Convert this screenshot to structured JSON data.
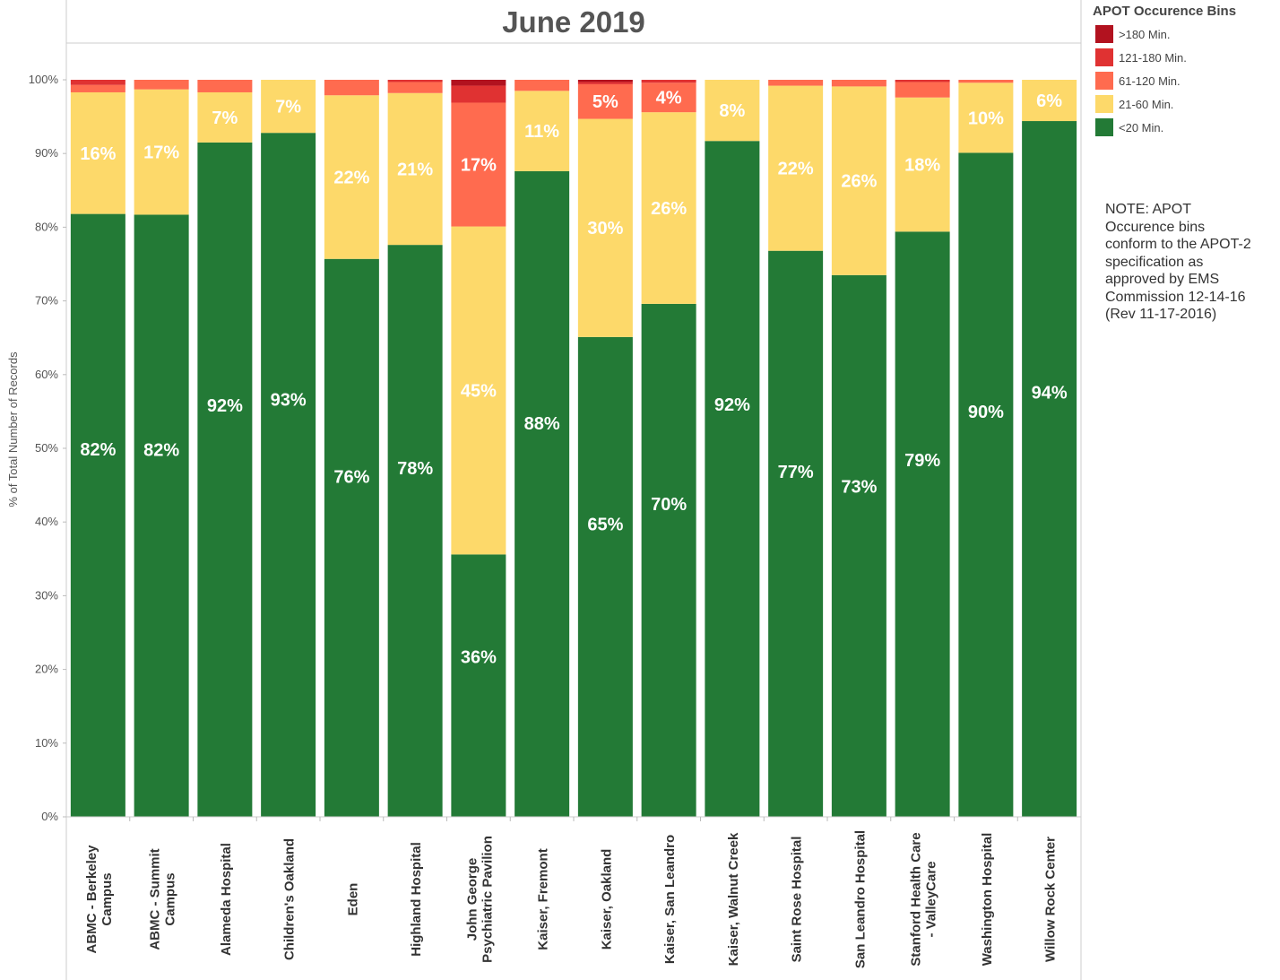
{
  "chart_data": {
    "type": "bar",
    "stacked": true,
    "title": "June 2019",
    "ylabel": "% of Total Number of Records",
    "xlabel": "",
    "ylim": [
      0,
      100
    ],
    "yticks": [
      "0%",
      "10%",
      "20%",
      "30%",
      "40%",
      "50%",
      "60%",
      "70%",
      "80%",
      "90%",
      "100%"
    ],
    "grid": false,
    "legend_position": "right",
    "categories": [
      [
        "ABMC - Berkeley",
        "Campus"
      ],
      [
        "ABMC - Summit",
        "Campus"
      ],
      [
        "Alameda Hospital"
      ],
      [
        "Children's Oakland"
      ],
      [
        "Eden"
      ],
      [
        "Highland Hospital"
      ],
      [
        "John George",
        "Psychiatric Pavilion"
      ],
      [
        "Kaiser, Fremont"
      ],
      [
        "Kaiser, Oakland"
      ],
      [
        "Kaiser, San Leandro"
      ],
      [
        "Kaiser, Walnut Creek"
      ],
      [
        "Saint Rose Hospital"
      ],
      [
        "San Leandro Hospital"
      ],
      [
        "Stanford Health Care",
        "- ValleyCare"
      ],
      [
        "Washington Hospital"
      ],
      [
        "Willow Rock Center"
      ]
    ],
    "series": [
      {
        "name": "<20 Min.",
        "color": "#237a36",
        "values": [
          81.8,
          81.7,
          91.5,
          92.8,
          75.7,
          77.6,
          35.6,
          87.6,
          65.1,
          69.6,
          91.7,
          76.8,
          73.5,
          79.4,
          90.1,
          94.4
        ],
        "labels": [
          "82%",
          "82%",
          "92%",
          "93%",
          "76%",
          "78%",
          "36%",
          "88%",
          "65%",
          "70%",
          "92%",
          "77%",
          "73%",
          "79%",
          "90%",
          "94%"
        ]
      },
      {
        "name": "21-60 Min.",
        "color": "#fdd96a",
        "values": [
          16.5,
          17.0,
          6.8,
          7.2,
          22.2,
          20.6,
          44.5,
          10.9,
          29.6,
          26.0,
          8.3,
          22.4,
          25.6,
          18.2,
          9.5,
          5.6
        ],
        "labels": [
          "16%",
          "17%",
          "7%",
          "7%",
          "22%",
          "21%",
          "45%",
          "11%",
          "30%",
          "26%",
          "8%",
          "22%",
          "26%",
          "18%",
          "10%",
          "6%"
        ]
      },
      {
        "name": "61-120 Min.",
        "color": "#ff6b4f",
        "values": [
          1.0,
          1.3,
          1.7,
          0.0,
          2.1,
          1.5,
          16.8,
          1.5,
          4.7,
          4.0,
          0.0,
          0.8,
          0.9,
          2.1,
          0.4,
          0.0
        ],
        "labels": [
          "",
          "",
          "",
          "",
          "",
          "",
          "17%",
          "",
          "5%",
          "4%",
          "",
          "",
          "",
          "",
          "",
          ""
        ]
      },
      {
        "name": "121-180 Min.",
        "color": "#e03232",
        "values": [
          0.7,
          0.0,
          0.0,
          0.0,
          0.0,
          0.3,
          2.3,
          0.0,
          0.3,
          0.4,
          0.0,
          0.0,
          0.0,
          0.3,
          0.0,
          0.0
        ],
        "labels": [
          "",
          "",
          "",
          "",
          "",
          "",
          "",
          "",
          "",
          "",
          "",
          "",
          "",
          "",
          "",
          ""
        ]
      },
      {
        "name": ">180 Min.",
        "color": "#b2121f",
        "values": [
          0.0,
          0.0,
          0.0,
          0.0,
          0.0,
          0.0,
          0.8,
          0.0,
          0.3,
          0.0,
          0.0,
          0.0,
          0.0,
          0.0,
          0.0,
          0.0
        ],
        "labels": [
          "",
          "",
          "",
          "",
          "",
          "",
          "",
          "",
          "",
          "",
          "",
          "",
          "",
          "",
          "",
          ""
        ]
      }
    ]
  },
  "legend": {
    "title": "APOT Occurence Bins",
    "items": [
      {
        "label": ">180 Min.",
        "color": "#b2121f"
      },
      {
        "label": "121-180 Min.",
        "color": "#e03232"
      },
      {
        "label": "61-120 Min.",
        "color": "#ff6b4f"
      },
      {
        "label": "21-60 Min.",
        "color": "#fdd96a"
      },
      {
        "label": "<20 Min.",
        "color": "#237a36"
      }
    ]
  },
  "note": {
    "lines": [
      "NOTE: APOT",
      "Occurence bins",
      "conform to the APOT-2",
      "specification as",
      "approved by EMS",
      "Commission 12-14-16",
      "(Rev 11-17-2016)"
    ]
  }
}
